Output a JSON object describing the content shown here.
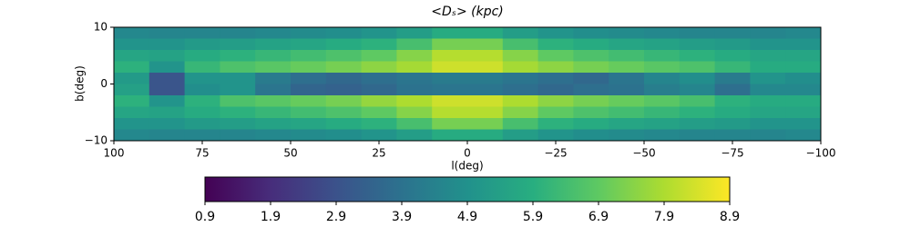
{
  "chart_data": {
    "type": "heatmap",
    "title": "<Dₛ> (kpc)",
    "x_label": "l(deg)",
    "y_label": "b(deg)",
    "x": [
      95,
      85,
      75,
      65,
      55,
      45,
      35,
      25,
      15,
      5,
      -5,
      -15,
      -25,
      -35,
      -45,
      -55,
      -65,
      -75,
      -85,
      -95
    ],
    "y": [
      9,
      7,
      5,
      3,
      1,
      -1,
      -3,
      -5,
      -7,
      -9
    ],
    "values": [
      [
        4.6,
        4.5,
        4.5,
        4.5,
        4.6,
        4.7,
        4.8,
        5.0,
        5.3,
        5.8,
        5.8,
        5.3,
        5.0,
        4.8,
        4.7,
        4.6,
        4.5,
        4.5,
        4.5,
        4.6
      ],
      [
        5.0,
        5.0,
        5.2,
        5.3,
        5.5,
        5.6,
        5.8,
        6.0,
        6.5,
        7.2,
        7.2,
        6.5,
        6.0,
        5.8,
        5.6,
        5.5,
        5.3,
        5.2,
        5.0,
        5.0
      ],
      [
        5.6,
        5.5,
        5.8,
        6.0,
        6.2,
        6.4,
        6.6,
        6.9,
        7.4,
        8.0,
        8.0,
        7.4,
        6.9,
        6.6,
        6.4,
        6.2,
        6.0,
        5.8,
        5.6,
        5.6
      ],
      [
        6.0,
        5.0,
        6.2,
        6.6,
        6.8,
        7.0,
        7.2,
        7.5,
        7.8,
        8.3,
        8.3,
        7.8,
        7.5,
        7.2,
        7.0,
        6.8,
        6.6,
        6.2,
        5.8,
        5.8
      ],
      [
        5.2,
        3.0,
        5.0,
        5.0,
        4.2,
        3.8,
        3.6,
        3.8,
        4.0,
        4.2,
        4.2,
        4.0,
        3.8,
        3.6,
        4.0,
        4.5,
        4.8,
        4.2,
        5.0,
        4.8
      ],
      [
        5.4,
        3.0,
        4.8,
        5.0,
        4.0,
        3.5,
        3.4,
        3.6,
        3.9,
        4.0,
        4.0,
        3.8,
        3.6,
        3.8,
        3.9,
        4.3,
        4.5,
        3.8,
        4.6,
        4.6
      ],
      [
        6.0,
        5.0,
        6.0,
        6.6,
        6.8,
        7.0,
        7.2,
        7.6,
        7.9,
        8.3,
        8.3,
        7.9,
        7.5,
        7.2,
        7.0,
        6.8,
        6.5,
        6.0,
        5.8,
        5.8
      ],
      [
        5.6,
        5.5,
        5.8,
        6.0,
        6.2,
        6.4,
        6.6,
        6.9,
        7.4,
        8.0,
        8.0,
        7.4,
        6.9,
        6.6,
        6.4,
        6.2,
        6.0,
        5.8,
        5.6,
        5.6
      ],
      [
        5.0,
        5.0,
        5.2,
        5.3,
        5.5,
        5.6,
        5.8,
        6.0,
        6.5,
        7.2,
        7.2,
        6.5,
        6.0,
        5.8,
        5.6,
        5.5,
        5.3,
        5.2,
        5.0,
        5.0
      ],
      [
        4.6,
        4.5,
        4.5,
        4.5,
        4.6,
        4.7,
        4.8,
        5.0,
        5.3,
        5.8,
        5.8,
        5.3,
        5.0,
        4.8,
        4.7,
        4.6,
        4.5,
        4.5,
        4.5,
        4.6
      ]
    ],
    "xlim": [
      100,
      -100
    ],
    "xticks": [
      100,
      75,
      50,
      25,
      0,
      {
        "value": -25,
        "label": "−25"
      },
      {
        "value": -50,
        "label": "−50"
      },
      {
        "value": -75,
        "label": "−75"
      },
      {
        "value": -100,
        "label": "−100"
      }
    ],
    "ylim": [
      -10,
      10
    ],
    "yticks": [
      10,
      0,
      {
        "value": -10,
        "label": "−10"
      }
    ],
    "colorscale": [
      "#440154",
      "#472d7b",
      "#3b528b",
      "#2c728e",
      "#21918c",
      "#28ae80",
      "#5ec962",
      "#addc30",
      "#fde725"
    ],
    "clim": [
      0.9,
      8.9
    ],
    "colorbar_ticks": [
      0.9,
      1.9,
      2.9,
      3.9,
      4.9,
      5.9,
      6.9,
      7.9,
      8.9
    ]
  }
}
